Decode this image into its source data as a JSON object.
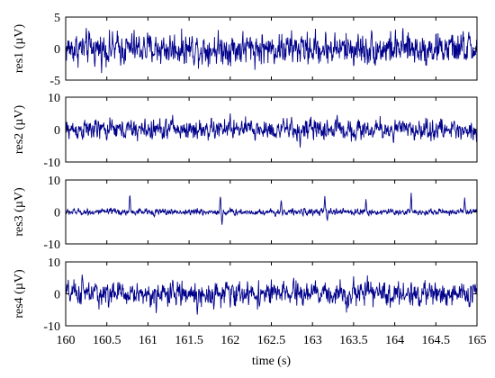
{
  "chart_data": [
    {
      "type": "line",
      "ylabel": "res1 (µV)",
      "ylim": [
        -5,
        5
      ],
      "yticks": [
        -5,
        0,
        5
      ],
      "xlim": [
        160,
        165
      ],
      "amplitude_typical": 1.8,
      "spikes": [],
      "grid": false,
      "color": "#00008b"
    },
    {
      "type": "line",
      "ylabel": "res2 (µV)",
      "ylim": [
        -10,
        10
      ],
      "yticks": [
        -10,
        0,
        10
      ],
      "xlim": [
        160,
        165
      ],
      "amplitude_typical": 2.2,
      "spikes": [
        {
          "x": 161.3,
          "y": 4.5
        },
        {
          "x": 162.0,
          "y": 5.0
        },
        {
          "x": 162.85,
          "y": -5.5
        },
        {
          "x": 163.3,
          "y": 4.5
        }
      ],
      "grid": false,
      "color": "#00008b"
    },
    {
      "type": "line",
      "ylabel": "res3 (µV)",
      "ylim": [
        -10,
        10
      ],
      "yticks": [
        -10,
        0,
        10
      ],
      "xlim": [
        160,
        165
      ],
      "amplitude_typical": 0.7,
      "spikes": [
        {
          "x": 160.78,
          "y": 6.0
        },
        {
          "x": 161.88,
          "y": 5.5
        },
        {
          "x": 161.9,
          "y": -4.0
        },
        {
          "x": 162.62,
          "y": 4.0
        },
        {
          "x": 163.15,
          "y": 5.0
        },
        {
          "x": 163.18,
          "y": -3.0
        },
        {
          "x": 163.65,
          "y": 4.0
        },
        {
          "x": 164.2,
          "y": 6.0
        },
        {
          "x": 164.85,
          "y": 4.5
        }
      ],
      "grid": false,
      "color": "#00008b"
    },
    {
      "type": "line",
      "ylabel": "res4 (µV)",
      "ylim": [
        -10,
        10
      ],
      "yticks": [
        -10,
        0,
        10
      ],
      "xlim": [
        160,
        165
      ],
      "xticks": [
        160,
        160.5,
        161,
        161.5,
        162,
        162.5,
        163,
        163.5,
        164,
        164.5,
        165
      ],
      "xlabel": "time (s)",
      "amplitude_typical": 2.6,
      "spikes": [
        {
          "x": 160.2,
          "y": 6.0
        },
        {
          "x": 161.1,
          "y": -6.0
        },
        {
          "x": 161.6,
          "y": -6.5
        },
        {
          "x": 163.5,
          "y": 5.5
        }
      ],
      "grid": false,
      "color": "#00008b"
    }
  ]
}
